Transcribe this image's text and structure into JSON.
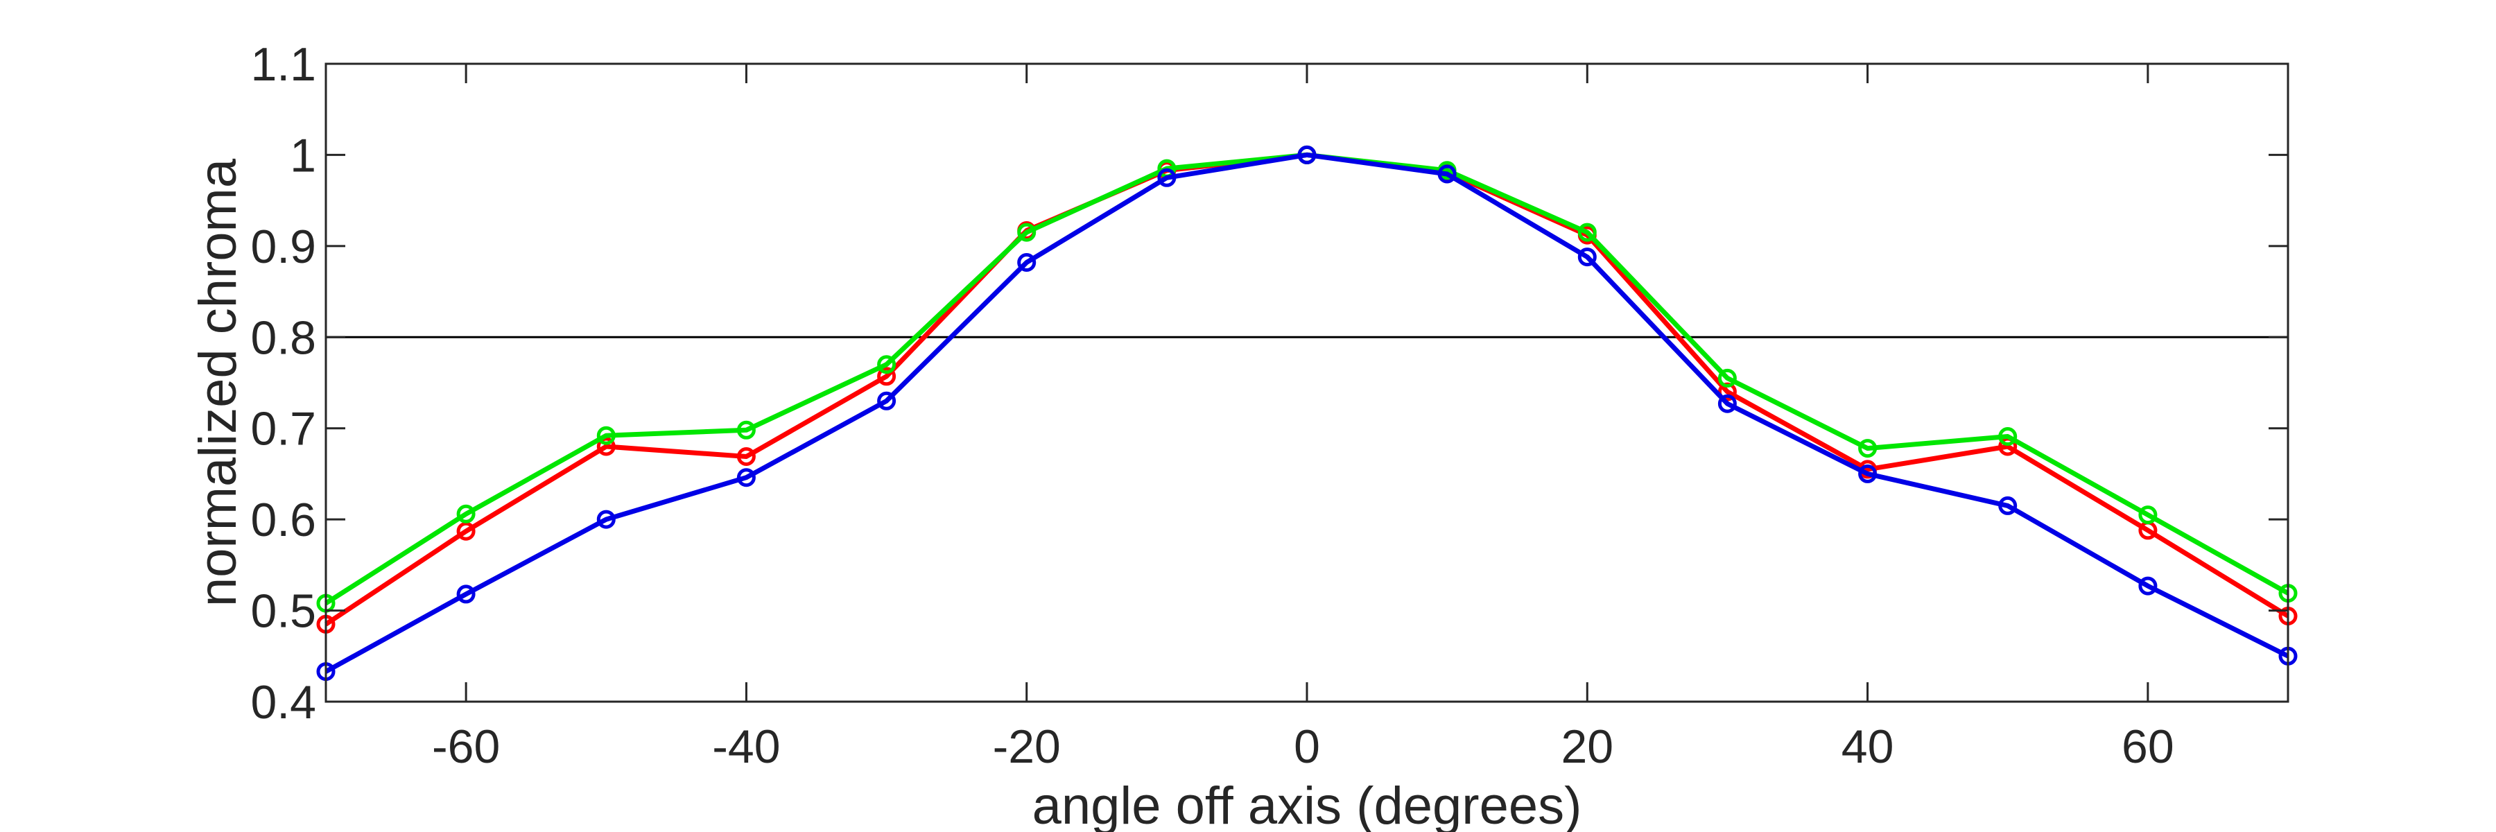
{
  "chart_data": {
    "type": "line",
    "title": "",
    "xlabel": "angle off axis (degrees)",
    "ylabel": "normalized chroma",
    "xlim": [
      -70,
      70
    ],
    "ylim": [
      0.4,
      1.1
    ],
    "xticks": [
      -60,
      -40,
      -20,
      0,
      20,
      40,
      60
    ],
    "yticks": [
      0.4,
      0.5,
      0.6,
      0.7,
      0.8,
      0.9,
      1,
      1.1
    ],
    "xtick_labels": [
      "-60",
      "-40",
      "-20",
      "0",
      "20",
      "40",
      "60"
    ],
    "ytick_labels": [
      "0.4",
      "0.5",
      "0.6",
      "0.7",
      "0.8",
      "0.9",
      "1",
      "1.1"
    ],
    "grid": false,
    "reference_line": {
      "y": 0.8,
      "color": "#000000"
    },
    "x": [
      -70,
      -60,
      -50,
      -40,
      -30,
      -20,
      -10,
      0,
      10,
      20,
      30,
      40,
      50,
      60,
      70
    ],
    "series": [
      {
        "color": "#ff0000",
        "values": [
          0.485,
          0.587,
          0.68,
          0.669,
          0.757,
          0.917,
          0.983,
          1.0,
          0.981,
          0.912,
          0.74,
          0.655,
          0.68,
          0.588,
          0.494
        ]
      },
      {
        "color": "#00e600",
        "values": [
          0.508,
          0.606,
          0.692,
          0.698,
          0.77,
          0.915,
          0.985,
          1.0,
          0.983,
          0.915,
          0.755,
          0.678,
          0.691,
          0.605,
          0.519
        ]
      },
      {
        "color": "#0000e6",
        "values": [
          0.433,
          0.518,
          0.6,
          0.646,
          0.73,
          0.882,
          0.975,
          1.0,
          0.979,
          0.888,
          0.727,
          0.65,
          0.615,
          0.527,
          0.45
        ]
      }
    ]
  }
}
